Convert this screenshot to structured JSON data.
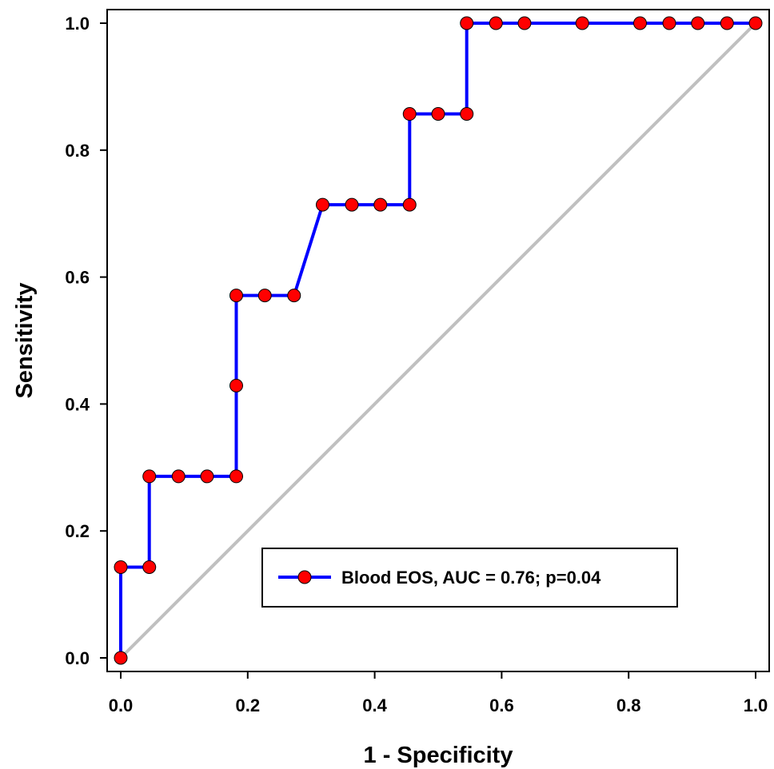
{
  "chart_data": {
    "type": "line",
    "xlabel": "1 - Specificity",
    "ylabel": "Sensitivity",
    "xlim": [
      0,
      1
    ],
    "ylim": [
      0,
      1
    ],
    "xticks": [
      "0.0",
      "0.2",
      "0.4",
      "0.6",
      "0.8",
      "1.0"
    ],
    "yticks": [
      "0.0",
      "0.2",
      "0.4",
      "0.6",
      "0.8",
      "1.0"
    ],
    "grid": false,
    "legend_position": "bottom-right",
    "reference_line": {
      "x": [
        0,
        1
      ],
      "y": [
        0,
        1
      ],
      "color": "#c0c0c0"
    },
    "series": [
      {
        "name": "Blood EOS, AUC = 0.76; p=0.04",
        "line_color": "#0000ff",
        "marker_color": "#ff0000",
        "x": [
          0.0,
          0.0,
          0.045,
          0.045,
          0.091,
          0.136,
          0.182,
          0.182,
          0.182,
          0.227,
          0.273,
          0.318,
          0.364,
          0.409,
          0.455,
          0.455,
          0.5,
          0.545,
          0.545,
          0.591,
          0.636,
          0.727,
          0.818,
          0.864,
          0.909,
          0.955,
          1.0
        ],
        "y": [
          0.0,
          0.143,
          0.143,
          0.286,
          0.286,
          0.286,
          0.286,
          0.429,
          0.571,
          0.571,
          0.571,
          0.714,
          0.714,
          0.714,
          0.714,
          0.857,
          0.857,
          0.857,
          1.0,
          1.0,
          1.0,
          1.0,
          1.0,
          1.0,
          1.0,
          1.0,
          1.0
        ]
      }
    ]
  }
}
